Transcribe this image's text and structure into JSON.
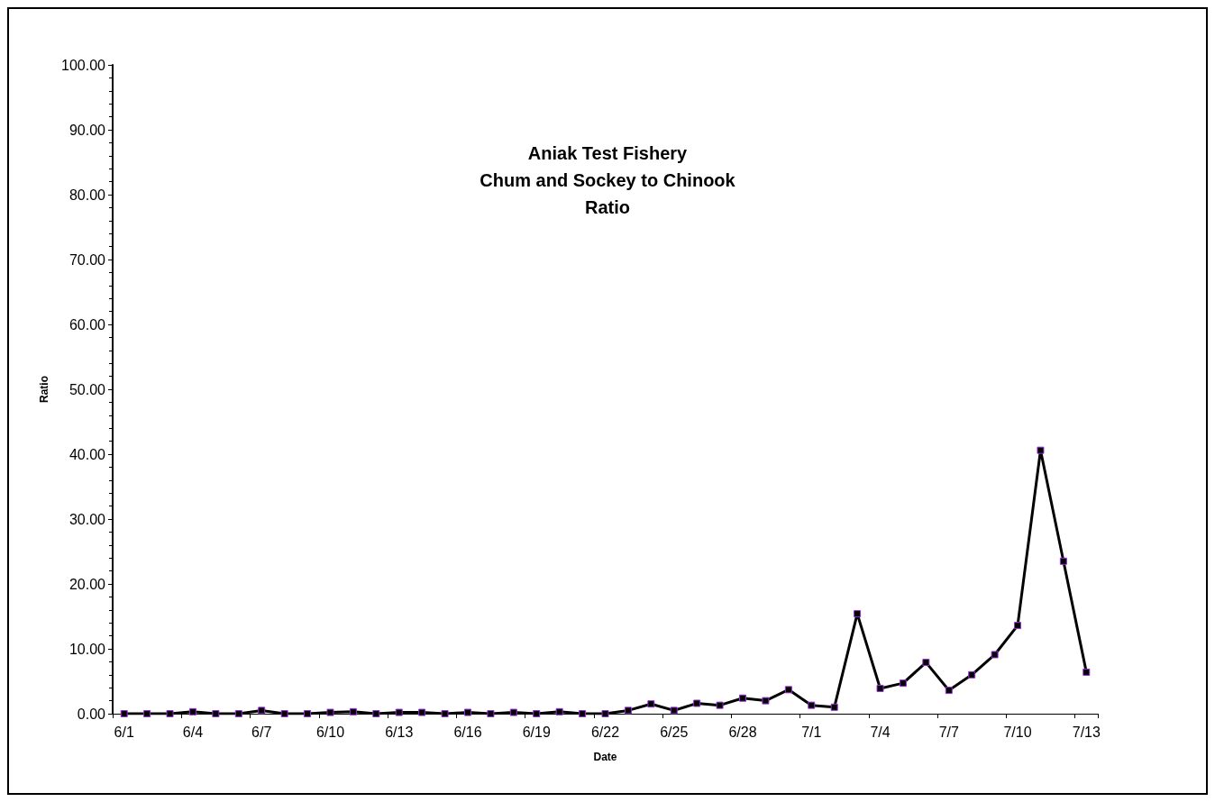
{
  "chart_data": {
    "type": "line",
    "title": "Aniak Test Fishery\nChum and Sockey to Chinook\nRatio",
    "xlabel": "Date",
    "ylabel": "Ratio",
    "categories": [
      "6/1",
      null,
      null,
      "6/4",
      null,
      null,
      "6/7",
      null,
      null,
      "6/10",
      null,
      null,
      "6/13",
      null,
      null,
      "6/16",
      null,
      null,
      "6/19",
      null,
      null,
      "6/22",
      null,
      null,
      "6/25",
      null,
      null,
      "6/28",
      null,
      null,
      "7/1",
      null,
      null,
      "7/4",
      null,
      null,
      "7/7",
      null,
      null,
      "7/10",
      null,
      null,
      "7/13"
    ],
    "series": [
      {
        "color": "#000000",
        "values": [
          0,
          0,
          0,
          0.3,
          0,
          0,
          0.5,
          0,
          0,
          0.2,
          0.3,
          0,
          0.2,
          0.2,
          0,
          0.2,
          0,
          0.2,
          0,
          0.3,
          0,
          0,
          0.5,
          1.5,
          0.5,
          1.6,
          1.3,
          2.4,
          2.0,
          3.7,
          1.3,
          1.0,
          15.4,
          3.9,
          4.7,
          7.9,
          3.6,
          6.0,
          9.1,
          13.6,
          40.6,
          23.5,
          6.4
        ]
      }
    ],
    "ylim": [
      0,
      100
    ],
    "yticks": [
      {
        "value": 0,
        "label": "0.00"
      },
      {
        "value": 10,
        "label": "10.00"
      },
      {
        "value": 20,
        "label": "20.00"
      },
      {
        "value": 30,
        "label": "30.00"
      },
      {
        "value": 40,
        "label": "40.00"
      },
      {
        "value": 50,
        "label": "50.00"
      },
      {
        "value": 60,
        "label": "60.00"
      },
      {
        "value": 70,
        "label": "70.00"
      },
      {
        "value": 80,
        "label": "80.00"
      },
      {
        "value": 90,
        "label": "90.00"
      },
      {
        "value": 100,
        "label": "100.00"
      }
    ],
    "grid": false,
    "marker": "square",
    "line_style": "solid"
  }
}
